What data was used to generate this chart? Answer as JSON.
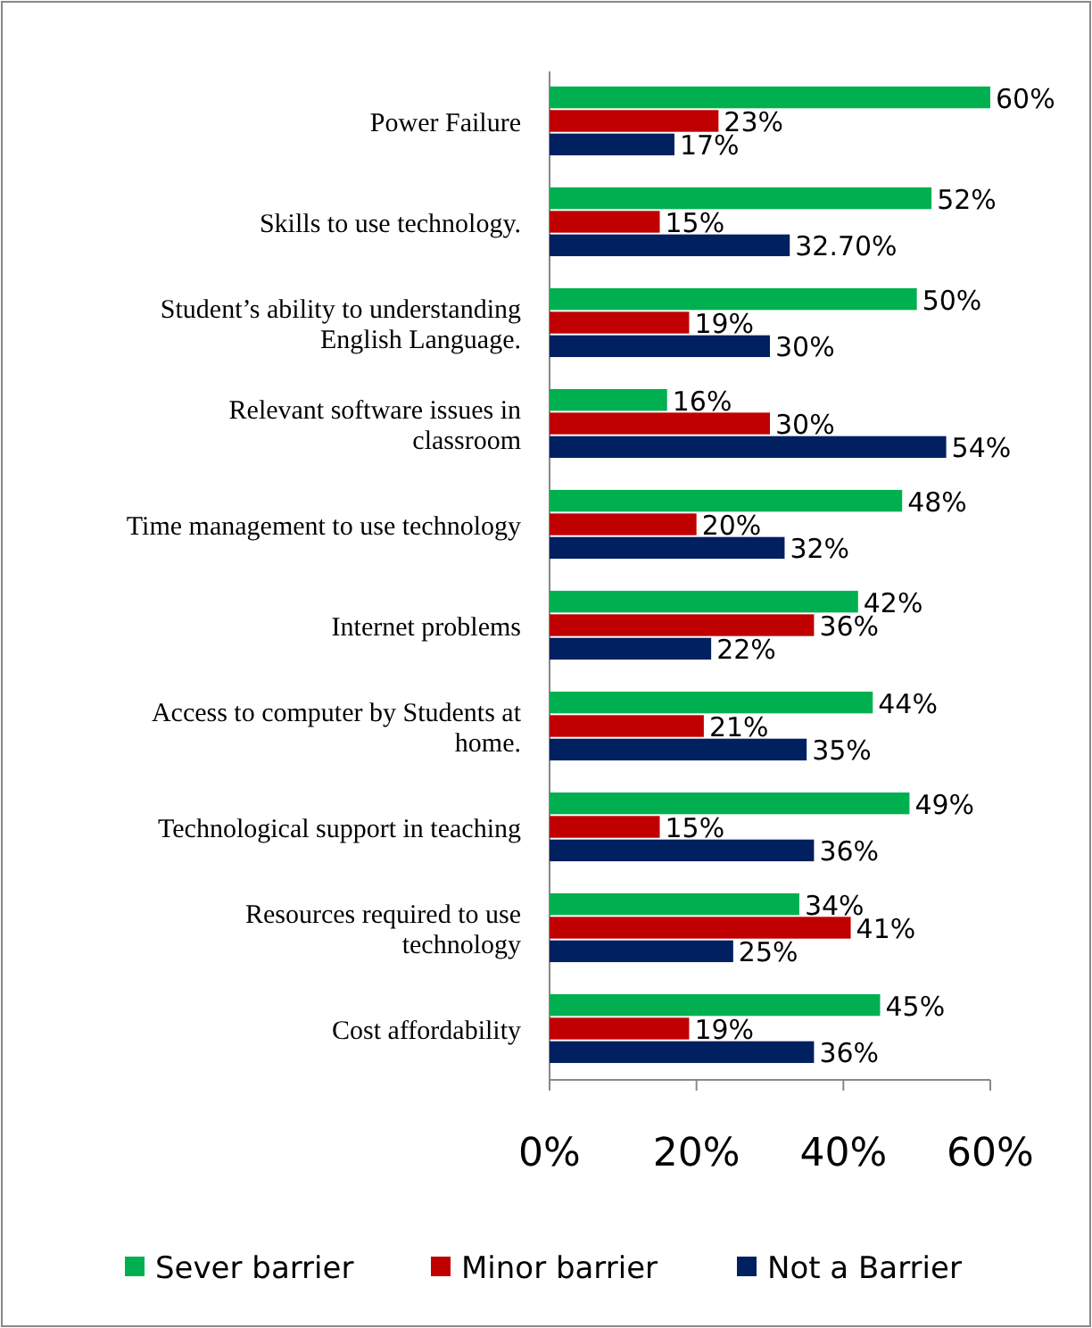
{
  "chart_data": {
    "type": "bar",
    "orientation": "horizontal",
    "categories": [
      "Power Failure",
      "Skills to use technology.",
      "Student’s ability to understanding English Language.",
      "Relevant software issues in classroom",
      "Time management to use technology",
      "Internet problems",
      "Access to computer by Students at home.",
      "Technological support in teaching",
      "Resources required to use technology",
      "Cost affordability"
    ],
    "series": [
      {
        "name": "Sever barrier",
        "color": "#00b050",
        "values": [
          60,
          52,
          50,
          16,
          48,
          42,
          44,
          49,
          34,
          45
        ],
        "value_labels": [
          "60%",
          "52%",
          "50%",
          "16%",
          "48%",
          "42%",
          "44%",
          "49%",
          "34%",
          "45%"
        ]
      },
      {
        "name": "Minor barrier",
        "color": "#c00000",
        "values": [
          23,
          15,
          19,
          30,
          20,
          36,
          21,
          15,
          41,
          19
        ],
        "value_labels": [
          "23%",
          "15%",
          "19%",
          "30%",
          "20%",
          "36%",
          "21%",
          "15%",
          "41%",
          "19%"
        ]
      },
      {
        "name": "Not a Barrier",
        "color": "#002060",
        "values": [
          17,
          32.7,
          30,
          54,
          32,
          22,
          35,
          36,
          25,
          36
        ],
        "value_labels": [
          "17%",
          "32.70%",
          "30%",
          "54%",
          "32%",
          "22%",
          "35%",
          "36%",
          "25%",
          "36%"
        ]
      }
    ],
    "xlim": [
      0,
      60
    ],
    "xticks": [
      {
        "value": 0,
        "label": "0%"
      },
      {
        "value": 20,
        "label": "20%"
      },
      {
        "value": 40,
        "label": "40%"
      },
      {
        "value": 60,
        "label": "60%"
      }
    ],
    "legend": "bottom"
  }
}
